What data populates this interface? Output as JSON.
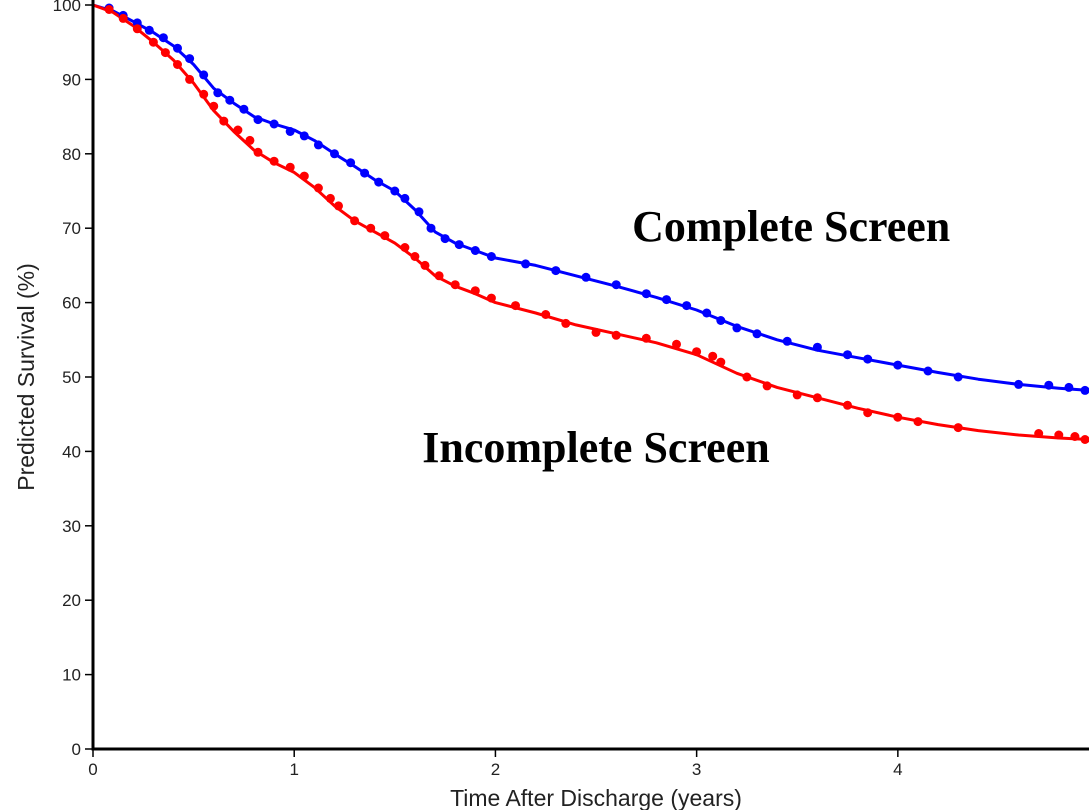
{
  "chart_data": {
    "type": "scatter",
    "title": "",
    "xlabel": "Time After Discharge (years)",
    "ylabel": "Predicted Survival (%)",
    "xlim": [
      0,
      4.95
    ],
    "ylim": [
      0,
      100
    ],
    "xticks": [
      0,
      1,
      2,
      3,
      4
    ],
    "yticks": [
      0,
      10,
      20,
      30,
      40,
      50,
      60,
      70,
      80,
      90,
      100
    ],
    "grid": false,
    "series": [
      {
        "name": "Complete Screen",
        "color": "#0000ff",
        "fit_curve": [
          [
            0,
            100
          ],
          [
            0.1,
            99.2
          ],
          [
            0.2,
            97.8
          ],
          [
            0.3,
            96.3
          ],
          [
            0.4,
            94.5
          ],
          [
            0.5,
            92.0
          ],
          [
            0.6,
            88.8
          ],
          [
            0.7,
            86.8
          ],
          [
            0.8,
            85.0
          ],
          [
            0.9,
            84.0
          ],
          [
            1.0,
            83.2
          ],
          [
            1.1,
            81.8
          ],
          [
            1.2,
            80.0
          ],
          [
            1.3,
            78.3
          ],
          [
            1.4,
            76.5
          ],
          [
            1.5,
            75.0
          ],
          [
            1.6,
            72.5
          ],
          [
            1.7,
            69.5
          ],
          [
            1.8,
            68.0
          ],
          [
            1.9,
            67.0
          ],
          [
            2.0,
            66.0
          ],
          [
            2.2,
            65.0
          ],
          [
            2.4,
            63.6
          ],
          [
            2.6,
            62.2
          ],
          [
            2.8,
            60.7
          ],
          [
            3.0,
            59.0
          ],
          [
            3.2,
            56.8
          ],
          [
            3.4,
            55.0
          ],
          [
            3.6,
            53.6
          ],
          [
            3.8,
            52.6
          ],
          [
            4.0,
            51.6
          ],
          [
            4.2,
            50.6
          ],
          [
            4.4,
            49.7
          ],
          [
            4.6,
            49.0
          ],
          [
            4.8,
            48.5
          ],
          [
            4.95,
            48.2
          ]
        ],
        "points": [
          [
            0.08,
            99.6
          ],
          [
            0.15,
            98.6
          ],
          [
            0.22,
            97.6
          ],
          [
            0.28,
            96.6
          ],
          [
            0.35,
            95.6
          ],
          [
            0.42,
            94.2
          ],
          [
            0.48,
            92.8
          ],
          [
            0.55,
            90.6
          ],
          [
            0.62,
            88.2
          ],
          [
            0.68,
            87.2
          ],
          [
            0.75,
            86.0
          ],
          [
            0.82,
            84.6
          ],
          [
            0.9,
            84.0
          ],
          [
            0.98,
            83.0
          ],
          [
            1.05,
            82.4
          ],
          [
            1.12,
            81.2
          ],
          [
            1.2,
            80.0
          ],
          [
            1.28,
            78.8
          ],
          [
            1.35,
            77.4
          ],
          [
            1.42,
            76.2
          ],
          [
            1.5,
            75.0
          ],
          [
            1.55,
            74.0
          ],
          [
            1.62,
            72.2
          ],
          [
            1.68,
            70.0
          ],
          [
            1.75,
            68.6
          ],
          [
            1.82,
            67.8
          ],
          [
            1.9,
            67.0
          ],
          [
            1.98,
            66.2
          ],
          [
            2.15,
            65.2
          ],
          [
            2.3,
            64.3
          ],
          [
            2.45,
            63.4
          ],
          [
            2.6,
            62.4
          ],
          [
            2.75,
            61.2
          ],
          [
            2.85,
            60.4
          ],
          [
            2.95,
            59.6
          ],
          [
            3.05,
            58.6
          ],
          [
            3.12,
            57.6
          ],
          [
            3.2,
            56.6
          ],
          [
            3.3,
            55.8
          ],
          [
            3.45,
            54.8
          ],
          [
            3.6,
            54.0
          ],
          [
            3.75,
            53.0
          ],
          [
            3.85,
            52.4
          ],
          [
            4.0,
            51.6
          ],
          [
            4.15,
            50.8
          ],
          [
            4.3,
            50.0
          ],
          [
            4.6,
            49.0
          ],
          [
            4.75,
            48.9
          ],
          [
            4.85,
            48.6
          ],
          [
            4.93,
            48.2
          ]
        ]
      },
      {
        "name": "Incomplete Screen",
        "color": "#ff0000",
        "fit_curve": [
          [
            0,
            100
          ],
          [
            0.1,
            99.0
          ],
          [
            0.2,
            97.2
          ],
          [
            0.3,
            95.0
          ],
          [
            0.4,
            92.6
          ],
          [
            0.5,
            89.5
          ],
          [
            0.6,
            85.8
          ],
          [
            0.7,
            83.0
          ],
          [
            0.8,
            80.5
          ],
          [
            0.9,
            78.8
          ],
          [
            1.0,
            77.5
          ],
          [
            1.1,
            75.5
          ],
          [
            1.2,
            73.0
          ],
          [
            1.3,
            71.0
          ],
          [
            1.4,
            69.5
          ],
          [
            1.5,
            68.0
          ],
          [
            1.6,
            66.0
          ],
          [
            1.7,
            63.6
          ],
          [
            1.8,
            62.2
          ],
          [
            1.9,
            61.2
          ],
          [
            2.0,
            60.0
          ],
          [
            2.2,
            58.6
          ],
          [
            2.4,
            57.0
          ],
          [
            2.6,
            55.8
          ],
          [
            2.8,
            54.6
          ],
          [
            3.0,
            53.0
          ],
          [
            3.2,
            50.5
          ],
          [
            3.4,
            48.6
          ],
          [
            3.6,
            47.2
          ],
          [
            3.8,
            45.8
          ],
          [
            4.0,
            44.6
          ],
          [
            4.2,
            43.6
          ],
          [
            4.4,
            42.8
          ],
          [
            4.6,
            42.2
          ],
          [
            4.8,
            41.8
          ],
          [
            4.95,
            41.6
          ]
        ],
        "points": [
          [
            0.08,
            99.4
          ],
          [
            0.15,
            98.2
          ],
          [
            0.22,
            96.8
          ],
          [
            0.3,
            95.0
          ],
          [
            0.36,
            93.6
          ],
          [
            0.42,
            92.0
          ],
          [
            0.48,
            90.0
          ],
          [
            0.55,
            88.0
          ],
          [
            0.6,
            86.4
          ],
          [
            0.65,
            84.4
          ],
          [
            0.72,
            83.2
          ],
          [
            0.78,
            81.8
          ],
          [
            0.82,
            80.2
          ],
          [
            0.9,
            79.0
          ],
          [
            0.98,
            78.2
          ],
          [
            1.05,
            77.0
          ],
          [
            1.12,
            75.4
          ],
          [
            1.18,
            74.0
          ],
          [
            1.22,
            73.0
          ],
          [
            1.3,
            71.0
          ],
          [
            1.38,
            70.0
          ],
          [
            1.45,
            69.0
          ],
          [
            1.55,
            67.4
          ],
          [
            1.6,
            66.2
          ],
          [
            1.65,
            65.0
          ],
          [
            1.72,
            63.6
          ],
          [
            1.8,
            62.4
          ],
          [
            1.9,
            61.6
          ],
          [
            1.98,
            60.6
          ],
          [
            2.1,
            59.6
          ],
          [
            2.25,
            58.4
          ],
          [
            2.35,
            57.2
          ],
          [
            2.5,
            56.0
          ],
          [
            2.6,
            55.6
          ],
          [
            2.75,
            55.2
          ],
          [
            2.9,
            54.4
          ],
          [
            3.0,
            53.4
          ],
          [
            3.08,
            52.8
          ],
          [
            3.12,
            52.0
          ],
          [
            3.25,
            50.0
          ],
          [
            3.35,
            48.8
          ],
          [
            3.5,
            47.6
          ],
          [
            3.6,
            47.2
          ],
          [
            3.75,
            46.2
          ],
          [
            3.85,
            45.2
          ],
          [
            4.0,
            44.6
          ],
          [
            4.1,
            44.0
          ],
          [
            4.3,
            43.2
          ],
          [
            4.7,
            42.4
          ],
          [
            4.8,
            42.2
          ],
          [
            4.88,
            42.0
          ],
          [
            4.93,
            41.6
          ]
        ]
      }
    ],
    "annotations": [
      {
        "text": "Complete Screen",
        "x": 3.47,
        "y": 70.3,
        "series": "Complete Screen"
      },
      {
        "text": "Incomplete Screen",
        "x": 2.5,
        "y": 40.6,
        "series": "Incomplete Screen"
      }
    ]
  }
}
